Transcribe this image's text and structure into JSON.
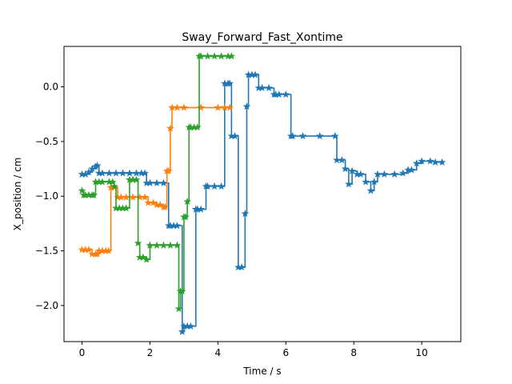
{
  "chart_data": {
    "type": "line",
    "title": "Sway_Forward_Fast_Xontime",
    "xlabel": "Time / s",
    "ylabel": "X_position / cm",
    "xlim": [
      -0.53,
      11.15
    ],
    "ylim": [
      -2.33,
      0.37
    ],
    "xticks": [
      0,
      2,
      4,
      6,
      8,
      10
    ],
    "xtick_labels": [
      "0",
      "2",
      "4",
      "6",
      "8",
      "10"
    ],
    "yticks": [
      -2.0,
      -1.5,
      -1.0,
      -0.5,
      0.0
    ],
    "ytick_labels": [
      "−2.0",
      "−1.5",
      "−1.0",
      "−0.5",
      "0.0"
    ],
    "grid": false,
    "legend": false,
    "marker": "star",
    "drawstyle": "steps",
    "series": [
      {
        "color": "#1f77b4",
        "x": [
          0.0,
          0.1,
          0.2,
          0.3,
          0.4,
          0.45,
          0.5,
          0.6,
          0.8,
          1.0,
          1.2,
          1.4,
          1.6,
          1.75,
          1.85,
          1.9,
          2.0,
          2.2,
          2.4,
          2.55,
          2.6,
          2.7,
          2.8,
          2.95,
          3.0,
          3.1,
          3.2,
          3.35,
          3.4,
          3.5,
          3.65,
          3.7,
          3.9,
          4.1,
          4.2,
          4.3,
          4.35,
          4.4,
          4.5,
          4.6,
          4.7,
          4.8,
          4.85,
          4.9,
          5.0,
          5.1,
          5.2,
          5.3,
          5.5,
          5.65,
          5.7,
          5.8,
          6.0,
          6.15,
          6.2,
          6.5,
          7.0,
          7.45,
          7.5,
          7.65,
          7.75,
          7.85,
          7.95,
          8.1,
          8.2,
          8.35,
          8.5,
          8.6,
          8.7,
          8.9,
          9.2,
          9.45,
          9.6,
          9.7,
          9.85,
          10.0,
          10.25,
          10.4,
          10.6
        ],
        "y": [
          -0.8,
          -0.8,
          -0.78,
          -0.75,
          -0.73,
          -0.72,
          -0.79,
          -0.79,
          -0.79,
          -0.79,
          -0.79,
          -0.79,
          -0.79,
          -0.79,
          -0.79,
          -0.88,
          -0.88,
          -0.88,
          -0.88,
          -1.27,
          -1.27,
          -1.27,
          -1.27,
          -2.24,
          -2.19,
          -2.19,
          -2.19,
          -1.12,
          -1.12,
          -1.12,
          -0.91,
          -0.91,
          -0.91,
          -0.91,
          0.03,
          0.03,
          0.03,
          -0.45,
          -0.45,
          -1.65,
          -1.65,
          -1.16,
          -0.18,
          0.11,
          0.11,
          0.11,
          -0.01,
          -0.01,
          -0.01,
          -0.07,
          -0.07,
          -0.07,
          -0.07,
          -0.45,
          -0.45,
          -0.45,
          -0.45,
          -0.45,
          -0.67,
          -0.67,
          -0.75,
          -0.89,
          -0.77,
          -0.8,
          -0.8,
          -0.87,
          -0.95,
          -0.87,
          -0.8,
          -0.8,
          -0.8,
          -0.79,
          -0.76,
          -0.76,
          -0.7,
          -0.68,
          -0.68,
          -0.69,
          -0.69
        ]
      },
      {
        "color": "#ff7f0e",
        "x": [
          0.0,
          0.1,
          0.2,
          0.3,
          0.4,
          0.45,
          0.5,
          0.6,
          0.7,
          0.78,
          0.85,
          0.95,
          1.05,
          1.15,
          1.3,
          1.5,
          1.7,
          1.85,
          1.95,
          2.1,
          2.2,
          2.3,
          2.4,
          2.45,
          2.5,
          2.55,
          2.6,
          2.65,
          2.8,
          3.0,
          3.5,
          4.0,
          4.2,
          4.35
        ],
        "y": [
          -1.49,
          -1.49,
          -1.49,
          -1.53,
          -1.53,
          -1.53,
          -1.5,
          -1.5,
          -1.5,
          -1.5,
          -0.92,
          -0.92,
          -1.01,
          -1.01,
          -1.01,
          -1.01,
          -1.01,
          -1.01,
          -1.06,
          -1.06,
          -1.08,
          -1.08,
          -1.1,
          -1.1,
          -0.77,
          -0.77,
          -0.38,
          -0.19,
          -0.19,
          -0.19,
          -0.19,
          -0.19,
          -0.19,
          -0.19
        ]
      },
      {
        "color": "#2ca02c",
        "x": [
          0.0,
          0.05,
          0.1,
          0.2,
          0.3,
          0.35,
          0.4,
          0.5,
          0.6,
          0.8,
          0.9,
          0.95,
          1.0,
          1.1,
          1.2,
          1.3,
          1.4,
          1.5,
          1.6,
          1.65,
          1.7,
          1.8,
          1.9,
          2.0,
          2.2,
          2.4,
          2.6,
          2.8,
          2.85,
          2.9,
          2.95,
          3.0,
          3.05,
          3.1,
          3.15,
          3.2,
          3.3,
          3.4,
          3.45,
          3.5,
          3.7,
          3.9,
          4.1,
          4.3,
          4.4
        ],
        "y": [
          -0.95,
          -0.99,
          -0.99,
          -0.99,
          -0.99,
          -0.99,
          -0.87,
          -0.87,
          -0.87,
          -0.87,
          -0.87,
          -0.91,
          -1.11,
          -1.11,
          -1.11,
          -1.11,
          -0.85,
          -0.85,
          -0.85,
          -1.43,
          -1.56,
          -1.56,
          -1.58,
          -1.45,
          -1.45,
          -1.45,
          -1.45,
          -1.45,
          -2.03,
          -1.87,
          -1.87,
          -1.19,
          -1.19,
          -1.05,
          -0.37,
          -0.37,
          -0.37,
          -0.37,
          0.28,
          0.28,
          0.28,
          0.28,
          0.28,
          0.28,
          0.28
        ]
      }
    ]
  }
}
